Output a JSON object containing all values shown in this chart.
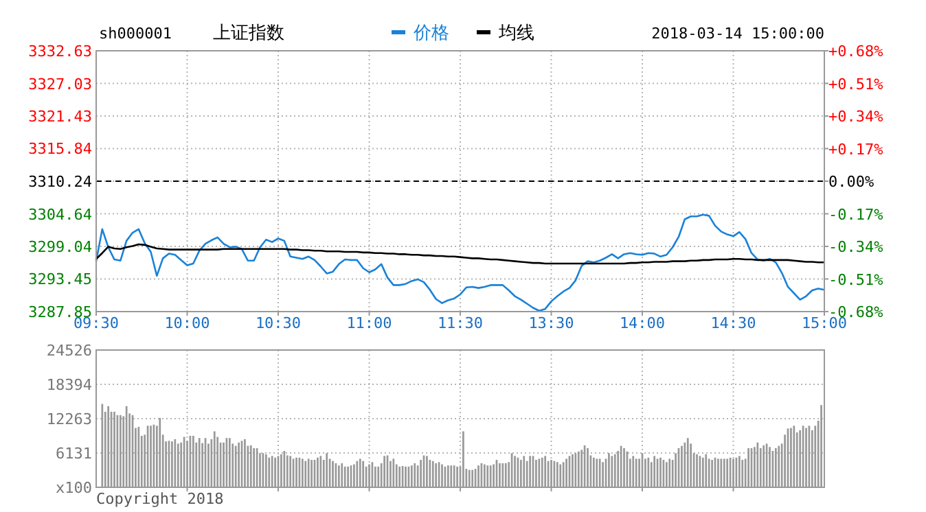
{
  "chart_data": [
    {
      "type": "line",
      "title": "上证指数",
      "subtitle": "sh000001",
      "annotations": [
        "2018-03-14 15:00:00"
      ],
      "categories": [
        "09:30",
        null,
        null,
        null,
        null,
        null,
        null,
        null,
        null,
        null,
        null,
        null,
        null,
        null,
        null,
        "10:00",
        null,
        null,
        null,
        null,
        null,
        null,
        null,
        null,
        null,
        null,
        null,
        null,
        null,
        null,
        "10:30",
        null,
        null,
        null,
        null,
        null,
        null,
        null,
        null,
        null,
        null,
        null,
        null,
        null,
        null,
        "11:00",
        null,
        null,
        null,
        null,
        null,
        null,
        null,
        null,
        null,
        null,
        null,
        null,
        null,
        null,
        "11:30",
        null,
        null,
        null,
        null,
        null,
        null,
        null,
        null,
        null,
        null,
        null,
        null,
        null,
        null,
        "13:30",
        null,
        null,
        null,
        null,
        null,
        null,
        null,
        null,
        null,
        null,
        null,
        null,
        null,
        null,
        "14:00",
        null,
        null,
        null,
        null,
        null,
        null,
        null,
        null,
        null,
        null,
        null,
        null,
        null,
        null,
        "14:30",
        null,
        null,
        null,
        null,
        null,
        null,
        null,
        null,
        null,
        null,
        null,
        null,
        null,
        null,
        "15:00"
      ],
      "ylim": [
        3287.85,
        3332.63
      ],
      "yticks": [
        3287.85,
        3293.45,
        3299.04,
        3304.64,
        3310.24,
        3315.84,
        3321.43,
        3327.03,
        3332.63
      ],
      "y2lim": [
        -0.68,
        0.68
      ],
      "y2ticks": [
        {
          "value": -0.68,
          "label": "-0.68%"
        },
        {
          "value": -0.51,
          "label": "-0.51%"
        },
        {
          "value": -0.34,
          "label": "-0.34%"
        },
        {
          "value": -0.17,
          "label": "-0.17%"
        },
        {
          "value": 0,
          "label": "0.00%"
        },
        {
          "value": 0.17,
          "label": "+0.17%"
        },
        {
          "value": 0.34,
          "label": "+0.34%"
        },
        {
          "value": 0.51,
          "label": "+0.51%"
        },
        {
          "value": 0.68,
          "label": "+0.68%"
        }
      ],
      "grid": true,
      "legend": "top",
      "ref_lines": [
        {
          "axis": "y",
          "value": 3310.24,
          "color": "#000000",
          "line_style": "dashed"
        }
      ],
      "series": [
        {
          "name": "价格",
          "color": "#1a82d8",
          "values": [
            3296.5,
            3302.0,
            3298.9,
            3296.8,
            3296.6,
            3300.0,
            3301.4,
            3302.0,
            3299.6,
            3298.1,
            3294.0,
            3297.0,
            3297.8,
            3297.6,
            3296.7,
            3295.8,
            3296.1,
            3298.3,
            3299.5,
            3300.1,
            3300.6,
            3299.5,
            3298.9,
            3299.0,
            3298.6,
            3296.6,
            3296.6,
            3298.9,
            3300.2,
            3299.8,
            3300.4,
            3300.0,
            3297.3,
            3297.1,
            3296.9,
            3297.3,
            3296.7,
            3295.6,
            3294.4,
            3294.7,
            3296.0,
            3296.8,
            3296.7,
            3296.7,
            3295.3,
            3294.6,
            3295.1,
            3296.0,
            3293.7,
            3292.4,
            3292.4,
            3292.6,
            3293.1,
            3293.4,
            3292.9,
            3291.6,
            3290.0,
            3289.3,
            3289.8,
            3290.1,
            3290.8,
            3292.0,
            3292.1,
            3291.9,
            3292.1,
            3292.4,
            3292.4,
            3292.4,
            3291.5,
            3290.5,
            3289.9,
            3289.2,
            3288.5,
            3288.0,
            3288.3,
            3289.6,
            3290.5,
            3291.3,
            3291.9,
            3293.2,
            3295.7,
            3296.5,
            3296.3,
            3296.6,
            3297.1,
            3297.7,
            3297.0,
            3297.7,
            3297.9,
            3297.7,
            3297.6,
            3297.9,
            3297.8,
            3297.3,
            3297.6,
            3298.9,
            3300.7,
            3303.7,
            3304.2,
            3304.2,
            3304.5,
            3304.3,
            3302.6,
            3301.6,
            3301.1,
            3300.8,
            3301.5,
            3300.3,
            3297.9,
            3296.8,
            3296.6,
            3296.9,
            3296.3,
            3294.5,
            3292.1,
            3291.0,
            3289.9,
            3290.5,
            3291.5,
            3291.8,
            3291.6
          ]
        },
        {
          "name": "均线",
          "color": "#000000",
          "values": [
            3296.9,
            3297.9,
            3299.0,
            3298.7,
            3298.6,
            3298.9,
            3299.1,
            3299.4,
            3299.3,
            3299.0,
            3298.7,
            3298.6,
            3298.5,
            3298.5,
            3298.5,
            3298.5,
            3298.5,
            3298.5,
            3298.5,
            3298.5,
            3298.5,
            3298.6,
            3298.6,
            3298.6,
            3298.6,
            3298.6,
            3298.6,
            3298.6,
            3298.6,
            3298.6,
            3298.6,
            3298.6,
            3298.5,
            3298.5,
            3298.4,
            3298.4,
            3298.3,
            3298.3,
            3298.2,
            3298.2,
            3298.2,
            3298.1,
            3298.1,
            3298.1,
            3298.0,
            3298.0,
            3297.9,
            3297.9,
            3297.8,
            3297.8,
            3297.7,
            3297.7,
            3297.6,
            3297.6,
            3297.5,
            3297.5,
            3297.4,
            3297.4,
            3297.3,
            3297.3,
            3297.2,
            3297.1,
            3297.0,
            3297.0,
            3296.9,
            3296.8,
            3296.8,
            3296.7,
            3296.6,
            3296.5,
            3296.4,
            3296.3,
            3296.2,
            3296.2,
            3296.1,
            3296.1,
            3296.1,
            3296.1,
            3296.1,
            3296.1,
            3296.1,
            3296.1,
            3296.1,
            3296.1,
            3296.1,
            3296.1,
            3296.1,
            3296.1,
            3296.2,
            3296.2,
            3296.3,
            3296.3,
            3296.4,
            3296.4,
            3296.4,
            3296.5,
            3296.5,
            3296.5,
            3296.6,
            3296.6,
            3296.7,
            3296.7,
            3296.8,
            3296.8,
            3296.8,
            3296.9,
            3296.9,
            3296.8,
            3296.8,
            3296.7,
            3296.7,
            3296.7,
            3296.7,
            3296.7,
            3296.7,
            3296.6,
            3296.5,
            3296.4,
            3296.4,
            3296.3,
            3296.3
          ]
        }
      ]
    },
    {
      "type": "bar",
      "annotations": [
        "Copyright 2018"
      ],
      "color": "#999999",
      "grid": true,
      "categories": [
        null,
        null,
        null,
        null,
        null,
        null,
        null,
        null,
        null,
        null,
        null,
        null,
        null,
        null,
        null,
        null,
        null,
        null,
        null,
        null,
        null,
        null,
        null,
        null,
        null,
        null,
        null,
        null,
        null,
        null,
        null,
        null,
        null,
        null,
        null,
        null,
        null,
        null,
        null,
        null,
        null,
        null,
        null,
        null,
        null,
        null,
        null,
        null,
        null,
        null,
        null,
        null,
        null,
        null,
        null,
        null,
        null,
        null,
        null,
        null,
        null,
        null,
        null,
        null,
        null,
        null,
        null,
        null,
        null,
        null,
        null,
        null,
        null,
        null,
        null,
        null,
        null,
        null,
        null,
        null,
        null,
        null,
        null,
        null,
        null,
        null,
        null,
        null,
        null,
        null,
        null,
        null,
        null,
        null,
        null,
        null,
        null,
        null,
        null,
        null,
        null,
        null,
        null,
        null,
        null,
        null,
        null,
        null,
        null,
        null,
        null,
        null,
        null,
        null,
        null,
        null,
        null,
        null,
        null,
        null,
        null,
        null,
        null,
        null,
        null,
        null,
        null,
        null,
        null,
        null,
        null,
        null,
        null,
        null,
        null,
        null,
        null,
        null,
        null,
        null,
        null,
        null,
        null,
        null,
        null,
        null,
        null,
        null,
        null,
        null,
        null,
        null,
        null,
        null,
        null,
        null,
        null,
        null,
        null,
        null,
        null,
        null,
        null,
        null,
        null,
        null,
        null,
        null,
        null,
        null,
        null,
        null,
        null,
        null,
        null,
        null,
        null,
        null,
        null,
        null,
        null,
        null,
        null,
        null,
        null,
        null,
        null,
        null,
        null,
        null,
        null,
        null,
        null,
        null,
        null,
        null,
        null,
        null,
        null,
        null,
        null,
        null,
        null,
        null,
        null,
        null,
        null,
        null,
        null,
        null,
        null,
        null,
        null,
        null,
        null,
        null,
        null,
        null,
        null,
        null,
        null,
        null,
        null,
        null,
        null,
        null,
        null,
        null,
        null,
        null,
        null,
        null,
        null,
        null,
        null,
        null,
        null,
        null,
        null,
        null,
        null
      ],
      "ylim": [
        0,
        24526
      ],
      "yticks": [
        {
          "value": 0,
          "label": "x100"
        },
        6131,
        12263,
        18394,
        24526
      ],
      "values": [
        null,
        null,
        14900,
        13500,
        14500,
        13500,
        13500,
        12900,
        12900,
        12700,
        14500,
        13200,
        12900,
        10600,
        10800,
        9200,
        9400,
        11000,
        11000,
        11200,
        11000,
        12400,
        9400,
        8200,
        8300,
        8200,
        8600,
        7800,
        8000,
        9000,
        8300,
        9200,
        9200,
        8000,
        8800,
        7900,
        8800,
        7800,
        8600,
        10000,
        9000,
        8000,
        8000,
        8800,
        8800,
        7800,
        7400,
        8000,
        8300,
        8600,
        7400,
        7500,
        7000,
        7000,
        6100,
        6100,
        5900,
        5300,
        5600,
        5300,
        5600,
        5900,
        6500,
        5700,
        5600,
        5100,
        5300,
        5300,
        5100,
        4700,
        5100,
        4900,
        4900,
        5300,
        5600,
        4900,
        6100,
        5100,
        4700,
        4300,
        3900,
        4300,
        3700,
        3700,
        3900,
        4100,
        4700,
        5100,
        4700,
        3700,
        4100,
        4500,
        3700,
        3700,
        4300,
        5600,
        5700,
        4700,
        5100,
        4100,
        3700,
        3800,
        3700,
        3700,
        3900,
        4300,
        3900,
        4900,
        5700,
        5600,
        4900,
        4700,
        4300,
        4500,
        4100,
        3700,
        3900,
        3900,
        3900,
        3700,
        3700,
        10000,
        3300,
        3100,
        3100,
        3300,
        3900,
        4300,
        4100,
        3900,
        3900,
        4100,
        4900,
        4300,
        4300,
        4300,
        4500,
        6100,
        5600,
        5300,
        4900,
        5600,
        4700,
        5600,
        5600,
        4900,
        5100,
        5300,
        5600,
        4700,
        4900,
        4700,
        4500,
        4100,
        4500,
        5100,
        5600,
        5900,
        6100,
        6400,
        6700,
        7500,
        7000,
        5700,
        5300,
        5100,
        5100,
        4500,
        5100,
        6100,
        5600,
        5900,
        6500,
        7400,
        7000,
        6400,
        5100,
        5600,
        5100,
        5100,
        6100,
        5100,
        5300,
        4500,
        5600,
        5100,
        5300,
        4900,
        4500,
        5100,
        4900,
        6100,
        7000,
        7400,
        8000,
        8800,
        7800,
        6100,
        5900,
        5600,
        5300,
        5900,
        5100,
        4900,
        5300,
        5100,
        5100,
        5100,
        5100,
        5300,
        5100,
        5300,
        5600,
        4900,
        5100,
        7000,
        7000,
        7200,
        8000,
        7000,
        7500,
        7800,
        7200,
        6500,
        7000,
        7400,
        7800,
        9400,
        10500,
        10600,
        11000,
        9800,
        10200,
        11000,
        10600,
        11000,
        10200,
        11000,
        11900,
        14700,
        null
      ]
    }
  ]
}
